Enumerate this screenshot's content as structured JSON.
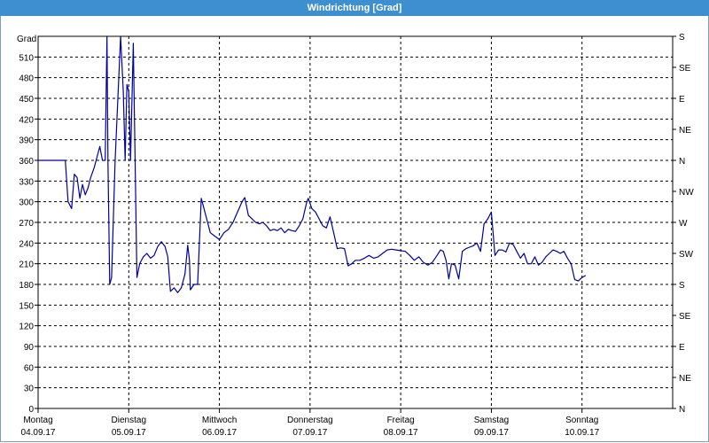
{
  "window": {
    "title": "Windrichtung [Grad]"
  },
  "colors": {
    "titlebar": "#3d8fd0",
    "line": "#0000a0",
    "grid": "#000000",
    "background": "#ffffff"
  },
  "chart_data": {
    "type": "line",
    "title": "Windrichtung [Grad]",
    "ylabel": "Grad",
    "xlabel": "",
    "ylim": [
      0,
      540
    ],
    "yticks": [
      0,
      30,
      60,
      90,
      120,
      150,
      180,
      210,
      240,
      270,
      300,
      330,
      360,
      390,
      420,
      450,
      480,
      510
    ],
    "right_axis": {
      "ticks": [
        {
          "value": 0,
          "label": "N"
        },
        {
          "value": 45,
          "label": "NE"
        },
        {
          "value": 90,
          "label": "E"
        },
        {
          "value": 135,
          "label": "SE"
        },
        {
          "value": 180,
          "label": "S"
        },
        {
          "value": 225,
          "label": "SW"
        },
        {
          "value": 270,
          "label": "W"
        },
        {
          "value": 315,
          "label": "NW"
        },
        {
          "value": 360,
          "label": "N"
        },
        {
          "value": 405,
          "label": "NE"
        },
        {
          "value": 450,
          "label": "E"
        },
        {
          "value": 495,
          "label": "SE"
        },
        {
          "value": 540,
          "label": "S"
        }
      ]
    },
    "xlim": [
      0,
      7
    ],
    "days": [
      {
        "x": 0,
        "label": "Montag",
        "date": "04.09.17"
      },
      {
        "x": 1,
        "label": "Dienstag",
        "date": "05.09.17"
      },
      {
        "x": 2,
        "label": "Mittwoch",
        "date": "06.09.17"
      },
      {
        "x": 3,
        "label": "Donnerstag",
        "date": "07.09.17"
      },
      {
        "x": 4,
        "label": "Freitag",
        "date": "08.09.17"
      },
      {
        "x": 5,
        "label": "Samstag",
        "date": "09.09.17"
      },
      {
        "x": 6,
        "label": "Sonntag",
        "date": "10.09.17"
      }
    ],
    "grid": true,
    "series": [
      {
        "values": [
          [
            0.0,
            360
          ],
          [
            0.3,
            360
          ],
          [
            0.33,
            300
          ],
          [
            0.37,
            290
          ],
          [
            0.4,
            340
          ],
          [
            0.43,
            335
          ],
          [
            0.46,
            305
          ],
          [
            0.49,
            325
          ],
          [
            0.52,
            310
          ],
          [
            0.55,
            320
          ],
          [
            0.58,
            335
          ],
          [
            0.62,
            350
          ],
          [
            0.65,
            365
          ],
          [
            0.68,
            380
          ],
          [
            0.71,
            360
          ],
          [
            0.74,
            360
          ],
          [
            0.76,
            540
          ],
          [
            0.77,
            360
          ],
          [
            0.79,
            180
          ],
          [
            0.81,
            190
          ],
          [
            0.85,
            360
          ],
          [
            0.88,
            450
          ],
          [
            0.91,
            540
          ],
          [
            0.94,
            460
          ],
          [
            0.96,
            360
          ],
          [
            0.98,
            470
          ],
          [
            1.0,
            460
          ],
          [
            1.02,
            360
          ],
          [
            1.05,
            530
          ],
          [
            1.09,
            190
          ],
          [
            1.12,
            210
          ],
          [
            1.16,
            220
          ],
          [
            1.2,
            225
          ],
          [
            1.24,
            218
          ],
          [
            1.28,
            222
          ],
          [
            1.32,
            235
          ],
          [
            1.36,
            242
          ],
          [
            1.4,
            235
          ],
          [
            1.43,
            220
          ],
          [
            1.46,
            170
          ],
          [
            1.5,
            175
          ],
          [
            1.54,
            168
          ],
          [
            1.58,
            175
          ],
          [
            1.62,
            195
          ],
          [
            1.65,
            237
          ],
          [
            1.67,
            215
          ],
          [
            1.68,
            172
          ],
          [
            1.72,
            180
          ],
          [
            1.76,
            180
          ],
          [
            1.8,
            305
          ],
          [
            1.85,
            280
          ],
          [
            1.9,
            255
          ],
          [
            1.95,
            250
          ],
          [
            2.0,
            245
          ],
          [
            2.05,
            255
          ],
          [
            2.1,
            260
          ],
          [
            2.15,
            270
          ],
          [
            2.2,
            285
          ],
          [
            2.25,
            300
          ],
          [
            2.28,
            306
          ],
          [
            2.32,
            280
          ],
          [
            2.36,
            275
          ],
          [
            2.4,
            270
          ],
          [
            2.44,
            268
          ],
          [
            2.48,
            270
          ],
          [
            2.52,
            265
          ],
          [
            2.56,
            258
          ],
          [
            2.6,
            260
          ],
          [
            2.64,
            258
          ],
          [
            2.68,
            262
          ],
          [
            2.72,
            255
          ],
          [
            2.76,
            260
          ],
          [
            2.8,
            258
          ],
          [
            2.84,
            257
          ],
          [
            2.88,
            265
          ],
          [
            2.92,
            275
          ],
          [
            2.96,
            298
          ],
          [
            2.98,
            305
          ],
          [
            3.02,
            290
          ],
          [
            3.06,
            285
          ],
          [
            3.1,
            275
          ],
          [
            3.14,
            265
          ],
          [
            3.18,
            262
          ],
          [
            3.22,
            278
          ],
          [
            3.26,
            255
          ],
          [
            3.3,
            232
          ],
          [
            3.34,
            233
          ],
          [
            3.38,
            232
          ],
          [
            3.42,
            207
          ],
          [
            3.46,
            210
          ],
          [
            3.5,
            215
          ],
          [
            3.55,
            215
          ],
          [
            3.6,
            218
          ],
          [
            3.65,
            222
          ],
          [
            3.7,
            218
          ],
          [
            3.75,
            220
          ],
          [
            3.8,
            225
          ],
          [
            3.85,
            230
          ],
          [
            3.9,
            231
          ],
          [
            3.95,
            230
          ],
          [
            4.0,
            229
          ],
          [
            4.05,
            228
          ],
          [
            4.1,
            222
          ],
          [
            4.15,
            215
          ],
          [
            4.2,
            220
          ],
          [
            4.25,
            212
          ],
          [
            4.3,
            208
          ],
          [
            4.35,
            212
          ],
          [
            4.4,
            222
          ],
          [
            4.44,
            230
          ],
          [
            4.47,
            228
          ],
          [
            4.5,
            215
          ],
          [
            4.53,
            188
          ],
          [
            4.56,
            210
          ],
          [
            4.6,
            208
          ],
          [
            4.64,
            188
          ],
          [
            4.68,
            228
          ],
          [
            4.72,
            232
          ],
          [
            4.76,
            234
          ],
          [
            4.8,
            236
          ],
          [
            4.84,
            240
          ],
          [
            4.88,
            228
          ],
          [
            4.92,
            268
          ],
          [
            4.96,
            275
          ],
          [
            5.0,
            285
          ],
          [
            5.04,
            222
          ],
          [
            5.08,
            230
          ],
          [
            5.12,
            230
          ],
          [
            5.16,
            227
          ],
          [
            5.2,
            240
          ],
          [
            5.24,
            238
          ],
          [
            5.28,
            228
          ],
          [
            5.32,
            218
          ],
          [
            5.36,
            225
          ],
          [
            5.4,
            210
          ],
          [
            5.44,
            210
          ],
          [
            5.48,
            220
          ],
          [
            5.52,
            208
          ],
          [
            5.56,
            212
          ],
          [
            5.6,
            220
          ],
          [
            5.64,
            225
          ],
          [
            5.68,
            230
          ],
          [
            5.72,
            228
          ],
          [
            5.76,
            225
          ],
          [
            5.8,
            228
          ],
          [
            5.84,
            218
          ],
          [
            5.88,
            210
          ],
          [
            5.92,
            187
          ],
          [
            5.96,
            185
          ],
          [
            6.0,
            190
          ],
          [
            6.04,
            193
          ]
        ]
      }
    ]
  }
}
